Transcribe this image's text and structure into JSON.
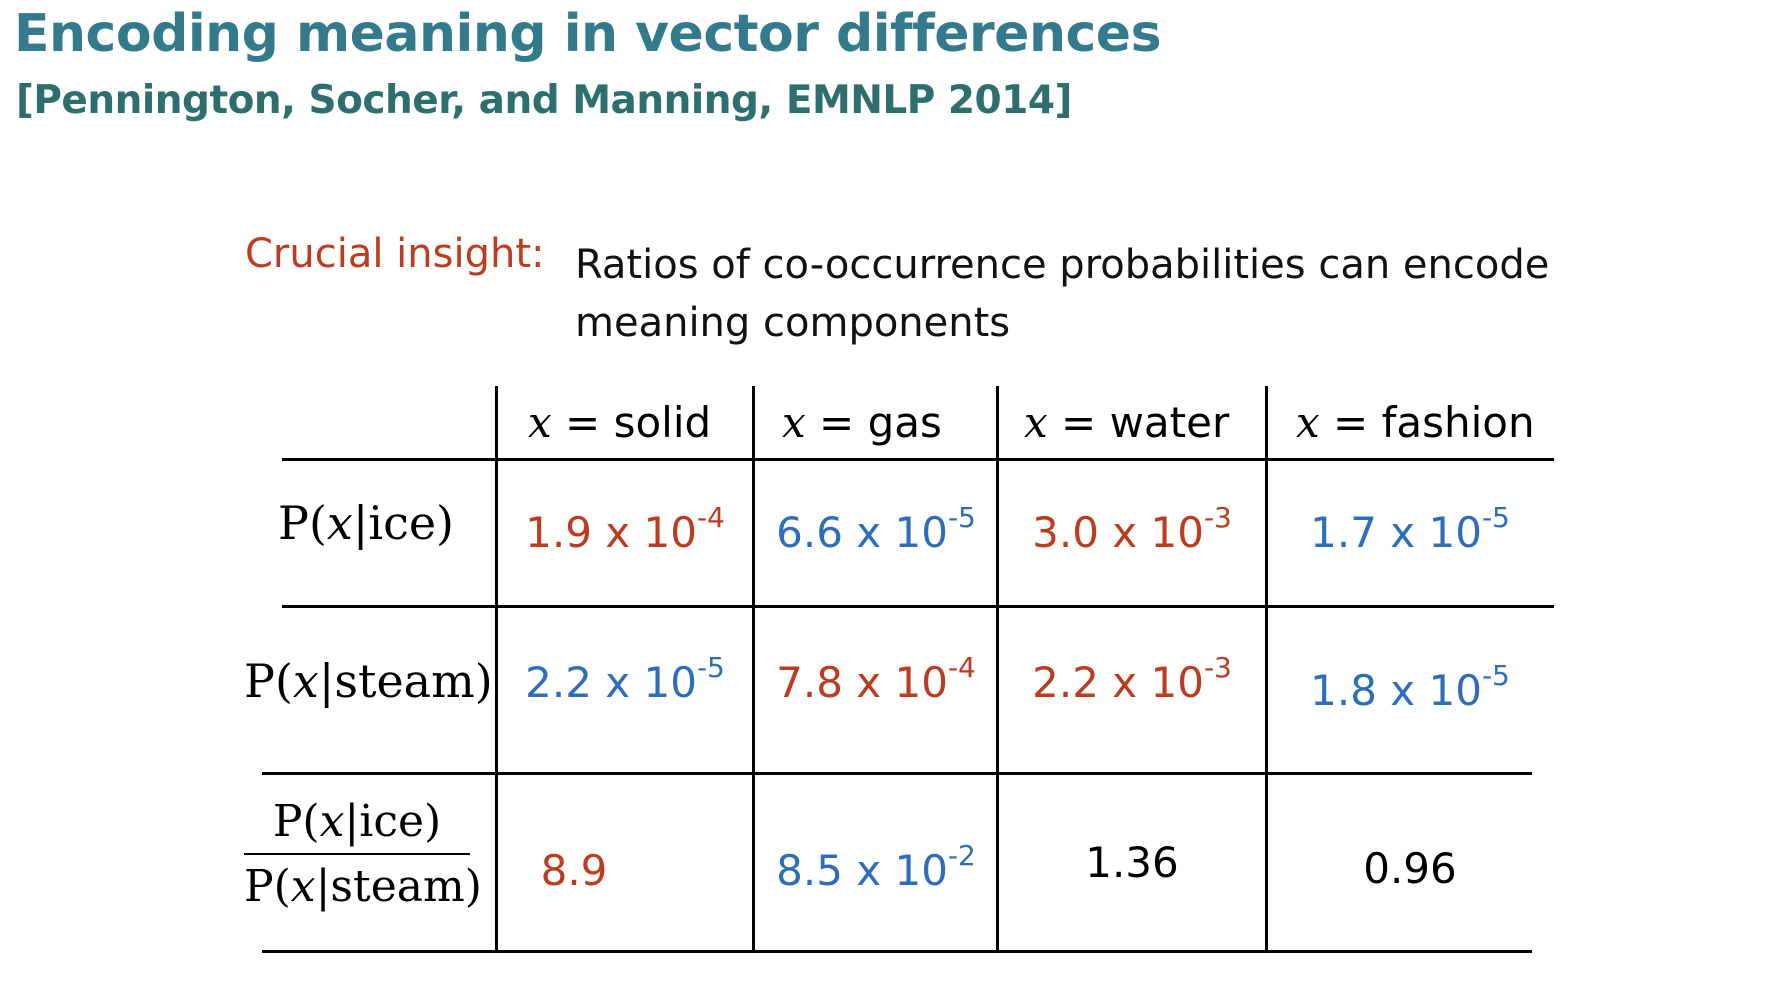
{
  "title": "Encoding meaning in vector differences",
  "subtitle": "[Pennington, Socher, and Manning, EMNLP 2014]",
  "insight": {
    "label": "Crucial insight:",
    "text": "Ratios of co-occurrence probabilities can encode meaning components"
  },
  "table": {
    "var_symbol": "x",
    "columns": [
      " = solid",
      " = gas",
      " = water",
      " = fashion"
    ],
    "rows": [
      {
        "label_prefix": "P(",
        "label_var": "x",
        "label_suffix": "|ice)",
        "cells": [
          {
            "mantissa": "1.9 x 10",
            "exp": "-4",
            "color": "#bd3b1f"
          },
          {
            "mantissa": "6.6 x 10",
            "exp": "-5",
            "color": "#2e6db9"
          },
          {
            "mantissa": "3.0 x 10",
            "exp": "-3",
            "color": "#bd3b1f"
          },
          {
            "mantissa": "1.7 x 10",
            "exp": "-5",
            "color": "#2e6db9"
          }
        ]
      },
      {
        "label_prefix": "P(",
        "label_var": "x",
        "label_suffix": "|steam)",
        "cells": [
          {
            "mantissa": "2.2 x 10",
            "exp": "-5",
            "color": "#2e6db9"
          },
          {
            "mantissa": "7.8 x 10",
            "exp": "-4",
            "color": "#bd3b1f"
          },
          {
            "mantissa": "2.2 x 10",
            "exp": "-3",
            "color": "#bd3b1f"
          },
          {
            "mantissa": "1.8 x 10",
            "exp": "-5",
            "color": "#2e6db9"
          }
        ]
      },
      {
        "label_num_prefix": "P(",
        "label_num_var": "x",
        "label_num_suffix": "|ice)",
        "label_den_prefix": "P(",
        "label_den_var": "x",
        "label_den_suffix": "|steam)",
        "cells": [
          {
            "mantissa": "8.9",
            "exp": "",
            "color": "#bd3b1f"
          },
          {
            "mantissa": "8.5 x 10",
            "exp": "-2",
            "color": "#2e6db9"
          },
          {
            "mantissa": "1.36",
            "exp": "",
            "color": "#000000"
          },
          {
            "mantissa": "0.96",
            "exp": "",
            "color": "#000000"
          }
        ]
      }
    ]
  }
}
